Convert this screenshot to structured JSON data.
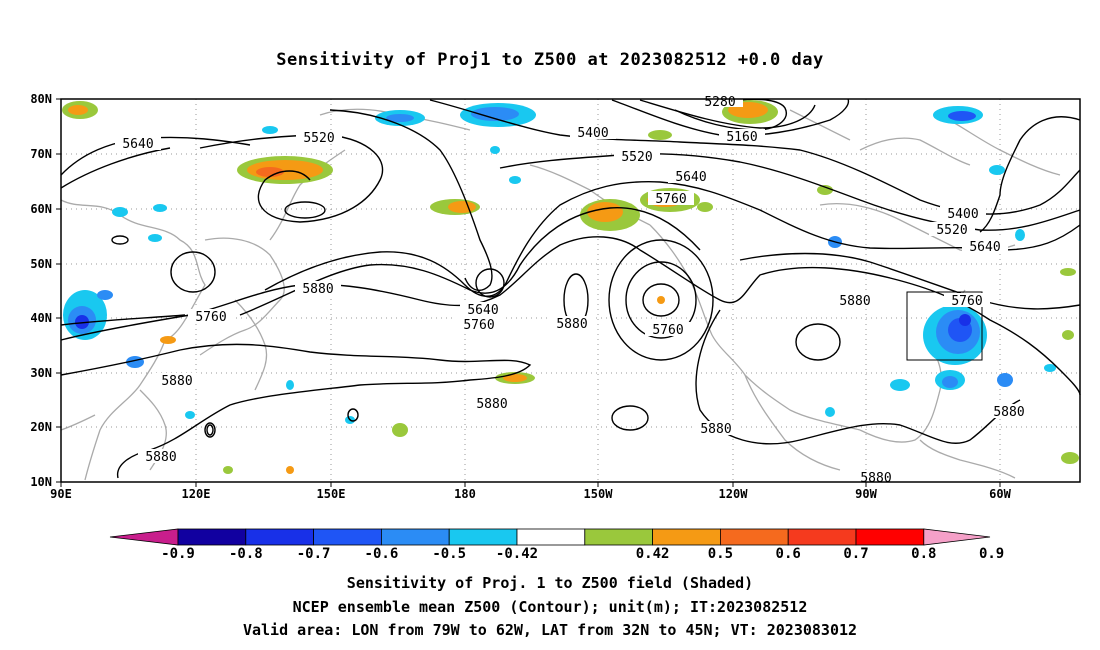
{
  "title": "Sensitivity of Proj1 to Z500 at 2023082512 +0.0 day",
  "y_axis_labels": [
    "80N",
    "70N",
    "60N",
    "50N",
    "40N",
    "30N",
    "20N",
    "10N"
  ],
  "x_axis_labels": [
    "90E",
    "120E",
    "150E",
    "180",
    "150W",
    "120W",
    "90W",
    "60W"
  ],
  "contour_labels": {
    "l5640_a": "5640",
    "l5520_a": "5520",
    "l5400_a": "5400",
    "l5280": "5280",
    "l5160": "5160",
    "l5520_b": "5520",
    "l5640_b": "5640",
    "l5760_a": "5760",
    "l5880_a": "5880",
    "l5760_b": "5760",
    "l5640_c": "5640",
    "l5760_c": "5760",
    "l5880_b": "5880",
    "l5760_d": "5760",
    "l5880_c": "5880",
    "l5880_d": "5880",
    "l5880_e": "5880",
    "l5880_f": "5880",
    "l5400_b": "5400",
    "l5520_c": "5520",
    "l5640_d": "5640",
    "l5760_e": "5760",
    "l5880_g": "5880",
    "l5880_h": "5880",
    "l5880_i": "5880"
  },
  "colorbar": {
    "labels": [
      "-0.9",
      "-0.8",
      "-0.7",
      "-0.6",
      "-0.5",
      "-0.42",
      "0.42",
      "0.5",
      "0.6",
      "0.7",
      "0.8",
      "0.9"
    ],
    "colors": [
      "#1100a0",
      "#1830e8",
      "#1f55f5",
      "#2b8cf5",
      "#19c8f0",
      "#ffffff",
      "#9ac83c",
      "#f59a14",
      "#f56a1e",
      "#f53a1e",
      "#ff0000"
    ],
    "low_tip": "#c81e8c",
    "high_tip": "#f5a0c8"
  },
  "footer": {
    "line1": "Sensitivity of Proj. 1 to Z500 field (Shaded)",
    "line2": "NCEP ensemble mean Z500 (Contour); unit(m); IT:2023082512",
    "line3": "Valid area: LON from 79W to 62W, LAT from 32N to 45N; VT: 2023083012"
  }
}
